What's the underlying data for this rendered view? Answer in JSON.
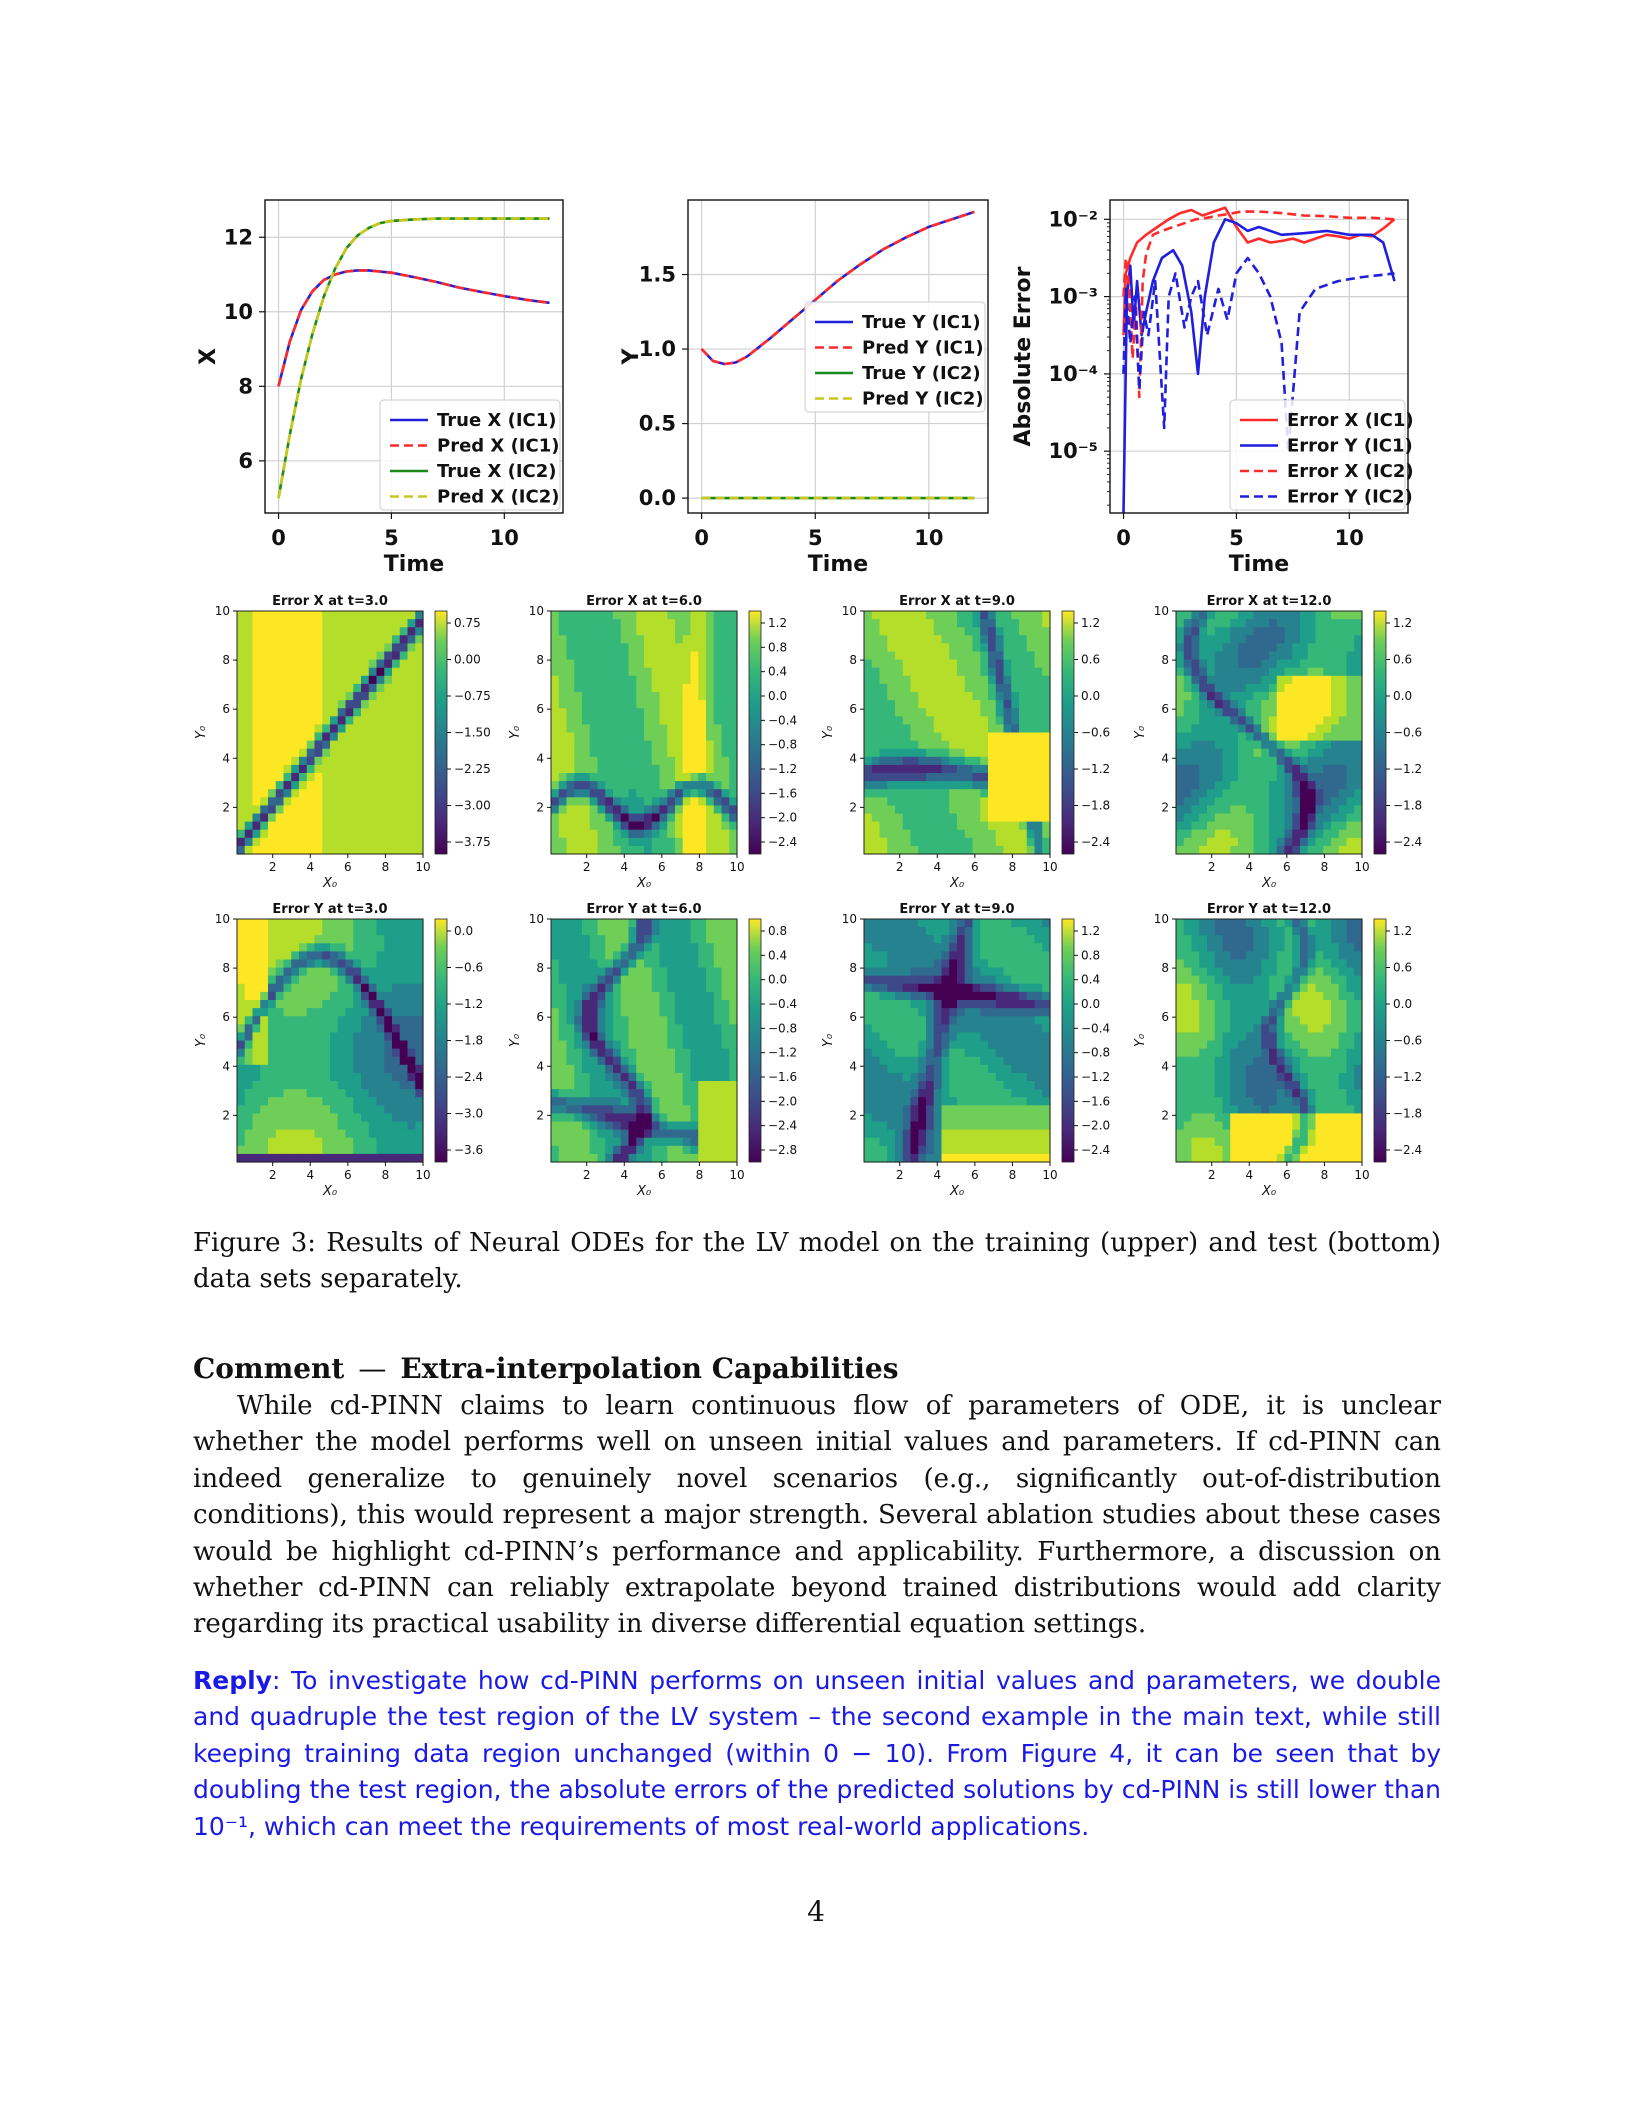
{
  "figure": {
    "line_plots": [
      {
        "type": "line",
        "ylabel": "X",
        "xlabel": "Time",
        "xticks": [
          "0",
          "5",
          "10"
        ],
        "yticks": [
          "6",
          "8",
          "10",
          "12"
        ],
        "series": [
          {
            "name": "True X (IC1)",
            "color": "#1f1fdd",
            "style": "solid",
            "x": [
              0,
              0.5,
              1,
              1.5,
              2,
              2.5,
              3,
              3.5,
              4,
              5,
              6,
              7,
              8,
              9,
              10,
              11,
              12
            ],
            "y": [
              8.0,
              9.2,
              10.05,
              10.55,
              10.85,
              11.0,
              11.08,
              11.11,
              11.11,
              11.05,
              10.93,
              10.8,
              10.65,
              10.53,
              10.42,
              10.32,
              10.24
            ]
          },
          {
            "name": "Pred X (IC1)",
            "color": "#ff2a2a",
            "style": "dashed",
            "x": [
              0,
              0.5,
              1,
              1.5,
              2,
              2.5,
              3,
              3.5,
              4,
              5,
              6,
              7,
              8,
              9,
              10,
              11,
              12
            ],
            "y": [
              8.0,
              9.2,
              10.05,
              10.55,
              10.85,
              11.0,
              11.08,
              11.11,
              11.11,
              11.05,
              10.93,
              10.8,
              10.65,
              10.53,
              10.42,
              10.32,
              10.24
            ]
          },
          {
            "name": "True X (IC2)",
            "color": "#1a8a1a",
            "style": "solid",
            "x": [
              0,
              0.5,
              1,
              1.5,
              2,
              2.5,
              3,
              3.5,
              4,
              4.5,
              5,
              6,
              7,
              8,
              9,
              10,
              11,
              12
            ],
            "y": [
              5.0,
              6.7,
              8.2,
              9.4,
              10.4,
              11.15,
              11.7,
              12.05,
              12.25,
              12.38,
              12.44,
              12.48,
              12.5,
              12.5,
              12.5,
              12.5,
              12.5,
              12.5
            ]
          },
          {
            "name": "Pred X (IC2)",
            "color": "#c8c81a",
            "style": "dashed",
            "x": [
              0,
              0.5,
              1,
              1.5,
              2,
              2.5,
              3,
              3.5,
              4,
              4.5,
              5,
              6,
              7,
              8,
              9,
              10,
              11,
              12
            ],
            "y": [
              5.0,
              6.7,
              8.2,
              9.4,
              10.4,
              11.15,
              11.7,
              12.05,
              12.25,
              12.38,
              12.44,
              12.48,
              12.5,
              12.5,
              12.5,
              12.5,
              12.5,
              12.5
            ]
          }
        ]
      },
      {
        "type": "line",
        "ylabel": "Y",
        "xlabel": "Time",
        "xticks": [
          "0",
          "5",
          "10"
        ],
        "yticks": [
          "0.0",
          "0.5",
          "1.0",
          "1.5"
        ],
        "series": [
          {
            "name": "True Y (IC1)",
            "color": "#1f1fdd",
            "style": "solid",
            "x": [
              0,
              0.5,
              1,
              1.5,
              2,
              3,
              4,
              5,
              6,
              7,
              8,
              9,
              10,
              11,
              12
            ],
            "y": [
              1.0,
              0.92,
              0.9,
              0.91,
              0.95,
              1.07,
              1.2,
              1.33,
              1.46,
              1.57,
              1.67,
              1.75,
              1.82,
              1.87,
              1.92
            ]
          },
          {
            "name": "Pred Y (IC1)",
            "color": "#ff2a2a",
            "style": "dashed",
            "x": [
              0,
              0.5,
              1,
              1.5,
              2,
              3,
              4,
              5,
              6,
              7,
              8,
              9,
              10,
              11,
              12
            ],
            "y": [
              1.0,
              0.92,
              0.9,
              0.91,
              0.95,
              1.07,
              1.2,
              1.33,
              1.46,
              1.57,
              1.67,
              1.75,
              1.82,
              1.87,
              1.92
            ]
          },
          {
            "name": "True Y (IC2)",
            "color": "#1a8a1a",
            "style": "solid",
            "x": [
              0,
              12
            ],
            "y": [
              0,
              0
            ]
          },
          {
            "name": "Pred Y (IC2)",
            "color": "#c8c81a",
            "style": "dashed",
            "x": [
              0,
              12
            ],
            "y": [
              0,
              0
            ]
          }
        ]
      },
      {
        "type": "line",
        "scale": "log",
        "ylabel": "Absolute Error",
        "xlabel": "Time",
        "xticks": [
          "0",
          "5",
          "10"
        ],
        "yticks": [
          "10⁻⁵",
          "10⁻⁴",
          "10⁻³",
          "10⁻²"
        ],
        "series": [
          {
            "name": "Error X (IC1)",
            "color": "#ff2a2a",
            "style": "solid",
            "x": [
              0,
              0.1,
              0.3,
              0.6,
              1,
              1.5,
              2,
              2.5,
              3,
              3.5,
              4,
              4.5,
              5,
              5.5,
              6,
              6.5,
              7,
              7.5,
              8,
              8.5,
              9,
              9.5,
              10,
              10.5,
              11,
              11.5,
              12
            ],
            "y": [
              -3.5,
              -2.7,
              -2.5,
              -2.3,
              -2.2,
              -2.1,
              -2.0,
              -1.92,
              -1.88,
              -1.95,
              -1.9,
              -1.85,
              -2.1,
              -2.3,
              -2.25,
              -2.3,
              -2.28,
              -2.25,
              -2.3,
              -2.25,
              -2.2,
              -2.22,
              -2.25,
              -2.2,
              -2.22,
              -2.12,
              -2.0
            ]
          },
          {
            "name": "Error Y (IC1)",
            "color": "#1f1fdd",
            "style": "solid",
            "x": [
              0,
              0.15,
              0.3,
              0.45,
              0.6,
              0.8,
              1,
              1.3,
              1.7,
              2.2,
              2.6,
              3,
              3.3,
              3.6,
              4,
              4.5,
              5,
              5.5,
              6,
              7,
              8,
              9,
              10,
              11,
              11.5,
              12
            ],
            "y": [
              -5.8,
              -3.0,
              -2.6,
              -3.4,
              -2.8,
              -3.5,
              -3.2,
              -2.8,
              -2.5,
              -2.4,
              -2.6,
              -3.2,
              -4.0,
              -3.0,
              -2.3,
              -2.0,
              -2.05,
              -2.15,
              -2.1,
              -2.2,
              -2.18,
              -2.15,
              -2.2,
              -2.2,
              -2.3,
              -2.8
            ]
          },
          {
            "name": "Error X (IC2)",
            "color": "#ff2a2a",
            "style": "dashed",
            "x": [
              0,
              0.1,
              0.25,
              0.4,
              0.55,
              0.7,
              0.85,
              1,
              1.3,
              1.7,
              2.2,
              2.7,
              3.2,
              3.7,
              4.2,
              4.7,
              5.2,
              6,
              7,
              8,
              9,
              10,
              11,
              12
            ],
            "y": [
              -3.0,
              -2.5,
              -2.9,
              -3.8,
              -3.1,
              -4.3,
              -2.8,
              -2.45,
              -2.2,
              -2.15,
              -2.1,
              -2.05,
              -2.0,
              -1.98,
              -1.95,
              -1.93,
              -1.9,
              -1.9,
              -1.92,
              -1.95,
              -1.96,
              -1.98,
              -1.98,
              -2.0
            ]
          },
          {
            "name": "Error Y (IC2)",
            "color": "#1f1fdd",
            "style": "dashed",
            "x": [
              0,
              0.1,
              0.3,
              0.5,
              0.7,
              0.9,
              1.1,
              1.4,
              1.8,
              2.0,
              2.3,
              2.7,
              3.0,
              3.3,
              3.7,
              4.2,
              4.6,
              5.0,
              5.5,
              6.0,
              6.5,
              7.0,
              7.3,
              7.8,
              8.5,
              9.5,
              10.5,
              12
            ],
            "y": [
              -4.0,
              -2.9,
              -3.6,
              -3.0,
              -4.2,
              -3.2,
              -3.5,
              -2.8,
              -4.7,
              -3.0,
              -2.7,
              -3.4,
              -3.0,
              -2.8,
              -3.5,
              -2.9,
              -3.3,
              -2.7,
              -2.5,
              -2.7,
              -3.0,
              -3.6,
              -5.0,
              -3.2,
              -2.9,
              -2.8,
              -2.75,
              -2.7
            ]
          }
        ]
      }
    ],
    "heatmap_axes": {
      "x_label": "X₀",
      "y_label": "Y₀",
      "x_ticks": [
        "2",
        "4",
        "6",
        "8",
        "10"
      ],
      "y_ticks": [
        "2",
        "4",
        "6",
        "8",
        "10"
      ]
    },
    "heatmaps": [
      {
        "title": "Error X at t=3.0",
        "colorbar": [
          "0.75",
          "0.00",
          "−0.75",
          "−1.50",
          "−2.25",
          "−3.00",
          "−3.75"
        ]
      },
      {
        "title": "Error X at t=6.0",
        "colorbar": [
          "1.2",
          "0.8",
          "0.4",
          "0.0",
          "−0.4",
          "−0.8",
          "−1.2",
          "−1.6",
          "−2.0",
          "−2.4"
        ]
      },
      {
        "title": "Error X at t=9.0",
        "colorbar": [
          "1.2",
          "0.6",
          "0.0",
          "−0.6",
          "−1.2",
          "−1.8",
          "−2.4"
        ]
      },
      {
        "title": "Error X at t=12.0",
        "colorbar": [
          "1.2",
          "0.6",
          "0.0",
          "−0.6",
          "−1.2",
          "−1.8",
          "−2.4"
        ]
      },
      {
        "title": "Error Y at t=3.0",
        "colorbar": [
          "0.0",
          "−0.6",
          "−1.2",
          "−1.8",
          "−2.4",
          "−3.0",
          "−3.6"
        ]
      },
      {
        "title": "Error Y at t=6.0",
        "colorbar": [
          "0.8",
          "0.4",
          "0.0",
          "−0.4",
          "−0.8",
          "−1.2",
          "−1.6",
          "−2.0",
          "−2.4",
          "−2.8"
        ]
      },
      {
        "title": "Error Y at t=9.0",
        "colorbar": [
          "1.2",
          "0.8",
          "0.4",
          "0.0",
          "−0.4",
          "−0.8",
          "−1.2",
          "−1.6",
          "−2.0",
          "−2.4"
        ]
      },
      {
        "title": "Error Y at t=12.0",
        "colorbar": [
          "1.2",
          "0.6",
          "0.0",
          "−0.6",
          "−1.2",
          "−1.8",
          "−2.4"
        ]
      }
    ],
    "caption": "Figure 3: Results of Neural ODEs for the LV model on the training (upper) and test (bottom) data sets separately."
  },
  "section": {
    "heading": "Comment",
    "dash": "—",
    "title": "Extra-interpolation Capabilities",
    "paragraph": "While cd-PINN claims to learn continuous flow of parameters of ODE, it is unclear whether the model performs well on unseen initial values and parameters. If cd-PINN can indeed generalize to genuinely novel scenarios (e.g., significantly out-of-distribution conditions), this would represent a major strength. Several ablation studies about these cases would be highlight cd-PINN’s performance and applicability. Furthermore, a discussion on whether cd-PINN can reliably extrapolate beyond trained distributions would add clarity regarding its practical usability in diverse differential equation settings."
  },
  "reply": {
    "label": "Reply",
    "text": ": To investigate how cd-PINN performs on unseen initial values and parameters, we double and quadruple the test region of the LV system – the second example in the main text, while still keeping training data region unchanged (within 0 − 10). From Figure 4, it can be seen that by doubling the test region, the absolute errors of the predicted solutions by cd-PINN is still lower than 10⁻¹, which can meet the requirements of most real-world applications."
  },
  "page_number": "4"
}
